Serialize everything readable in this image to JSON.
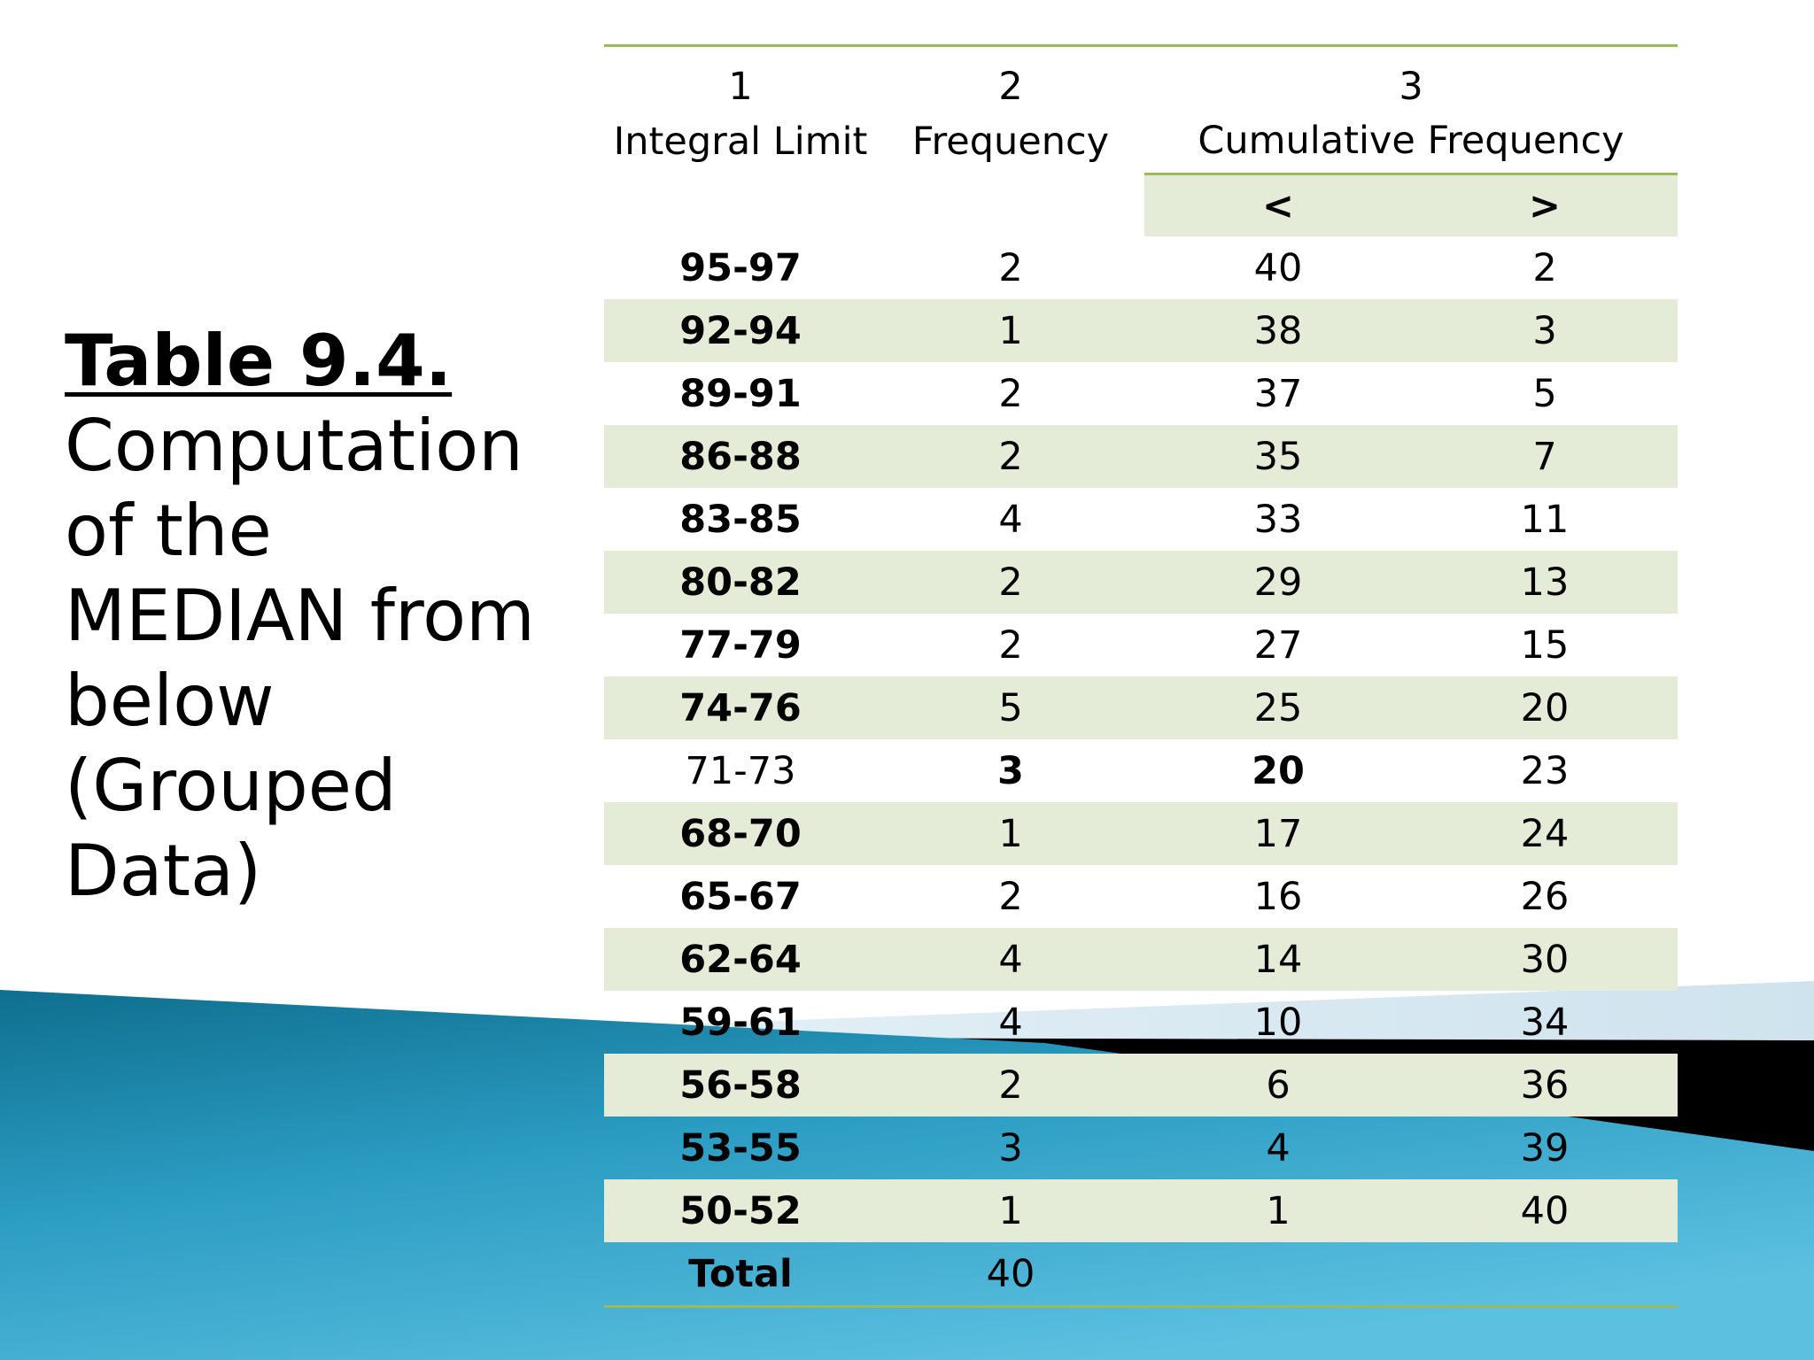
{
  "title": {
    "label": "Table 9.4.",
    "subtitle_lines": [
      "Computation",
      "of the",
      "MEDIAN from",
      "below",
      "(Grouped",
      "Data)"
    ]
  },
  "table": {
    "column_numbers": [
      "1",
      "2",
      "3"
    ],
    "column_headers": [
      "Integral Limit",
      "Frequency",
      "Cumulative Frequency"
    ],
    "sub_headers": [
      "<",
      ">"
    ],
    "rows": [
      {
        "interval": "95-97",
        "frequency": "2",
        "cf_less": "40",
        "cf_greater": "2"
      },
      {
        "interval": "92-94",
        "frequency": "1",
        "cf_less": "38",
        "cf_greater": "3"
      },
      {
        "interval": "89-91",
        "frequency": "2",
        "cf_less": "37",
        "cf_greater": "5"
      },
      {
        "interval": "86-88",
        "frequency": "2",
        "cf_less": "35",
        "cf_greater": "7"
      },
      {
        "interval": "83-85",
        "frequency": "4",
        "cf_less": "33",
        "cf_greater": "11"
      },
      {
        "interval": "80-82",
        "frequency": "2",
        "cf_less": "29",
        "cf_greater": "13"
      },
      {
        "interval": "77-79",
        "frequency": "2",
        "cf_less": "27",
        "cf_greater": "15"
      },
      {
        "interval": "74-76",
        "frequency": "5",
        "cf_less": "25",
        "cf_greater": "20"
      },
      {
        "interval": "71-73",
        "frequency": "3",
        "cf_less": "20",
        "cf_greater": "23"
      },
      {
        "interval": "68-70",
        "frequency": "1",
        "cf_less": "17",
        "cf_greater": "24"
      },
      {
        "interval": "65-67",
        "frequency": "2",
        "cf_less": "16",
        "cf_greater": "26"
      },
      {
        "interval": "62-64",
        "frequency": "4",
        "cf_less": "14",
        "cf_greater": "30"
      },
      {
        "interval": "59-61",
        "frequency": "4",
        "cf_less": "10",
        "cf_greater": "34"
      },
      {
        "interval": "56-58",
        "frequency": "2",
        "cf_less": "6",
        "cf_greater": "36"
      },
      {
        "interval": "53-55",
        "frequency": "3",
        "cf_less": "4",
        "cf_greater": "39"
      },
      {
        "interval": "50-52",
        "frequency": "1",
        "cf_less": "1",
        "cf_greater": "40"
      }
    ],
    "total": {
      "label": "Total",
      "value": "40"
    }
  },
  "colors": {
    "row_shade": "#e4ecd8",
    "rule_green": "#9bbb59",
    "wave_teal": "#1e8fb3",
    "wave_light": "#d6e8f2",
    "band_black": "#000000"
  }
}
